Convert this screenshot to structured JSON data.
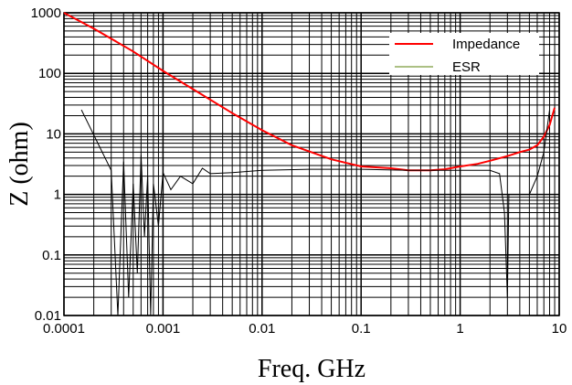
{
  "chart_data": {
    "type": "line",
    "xlabel": "Freq. GHz",
    "ylabel": "Z (ohm)",
    "x_scale": "log",
    "y_scale": "log",
    "xlim": [
      0.0001,
      10
    ],
    "ylim": [
      0.01,
      1000
    ],
    "grid": true,
    "legend_position": "top-right",
    "x_ticks": [
      {
        "value": 0.0001,
        "label": "0.0001"
      },
      {
        "value": 0.001,
        "label": "0.001"
      },
      {
        "value": 0.01,
        "label": "0.01"
      },
      {
        "value": 0.1,
        "label": "0.1"
      },
      {
        "value": 1,
        "label": "1"
      },
      {
        "value": 10,
        "label": "10"
      }
    ],
    "y_ticks": [
      {
        "value": 0.01,
        "label": "0.01"
      },
      {
        "value": 0.1,
        "label": "0.1"
      },
      {
        "value": 1,
        "label": "1"
      },
      {
        "value": 10,
        "label": "10"
      },
      {
        "value": 100,
        "label": "100"
      },
      {
        "value": 1000,
        "label": "1000"
      }
    ],
    "series": [
      {
        "name": "Impedance",
        "color": "#ff0000",
        "points": [
          [
            0.0001,
            1100
          ],
          [
            0.0002,
            550
          ],
          [
            0.0005,
            230
          ],
          [
            0.001,
            110
          ],
          [
            0.002,
            55
          ],
          [
            0.005,
            22
          ],
          [
            0.01,
            11.5
          ],
          [
            0.02,
            6.5
          ],
          [
            0.05,
            3.8
          ],
          [
            0.1,
            2.9
          ],
          [
            0.2,
            2.7
          ],
          [
            0.3,
            2.5
          ],
          [
            0.5,
            2.5
          ],
          [
            0.7,
            2.6
          ],
          [
            1,
            2.9
          ],
          [
            1.5,
            3.2
          ],
          [
            2,
            3.6
          ],
          [
            3,
            4.3
          ],
          [
            4,
            5.0
          ],
          [
            5,
            5.5
          ],
          [
            6,
            6.5
          ],
          [
            7,
            9
          ],
          [
            8,
            14
          ],
          [
            9,
            27
          ]
        ]
      },
      {
        "name": "ESR",
        "color": "#000000",
        "points": [
          [
            0.00015,
            25
          ],
          [
            0.0003,
            2.5
          ],
          [
            0.00035,
            0.01
          ],
          [
            0.0004,
            3.5
          ],
          [
            0.00045,
            0.02
          ],
          [
            0.0005,
            1.5
          ],
          [
            0.00055,
            0.05
          ],
          [
            0.0006,
            4.5
          ],
          [
            0.00065,
            0.2
          ],
          [
            0.0007,
            2
          ],
          [
            0.00075,
            0.01
          ],
          [
            0.0008,
            1.5
          ],
          [
            0.0009,
            0.3
          ],
          [
            0.001,
            2.3
          ],
          [
            0.0012,
            1.2
          ],
          [
            0.0015,
            2
          ],
          [
            0.002,
            1.5
          ],
          [
            0.0025,
            2.7
          ],
          [
            0.003,
            2.2
          ],
          [
            0.005,
            2.3
          ],
          [
            0.01,
            2.5
          ],
          [
            0.03,
            2.6
          ],
          [
            0.1,
            2.6
          ],
          [
            0.3,
            2.5
          ],
          [
            1,
            2.5
          ],
          [
            2,
            2.5
          ],
          [
            2.5,
            2.2
          ],
          [
            2.8,
            0.5
          ],
          [
            3,
            0.02
          ],
          [
            3.1,
            1.0
          ],
          [
            5,
            1.0
          ],
          [
            6,
            2.0
          ],
          [
            7,
            5.0
          ],
          [
            8,
            25
          ]
        ]
      }
    ]
  }
}
